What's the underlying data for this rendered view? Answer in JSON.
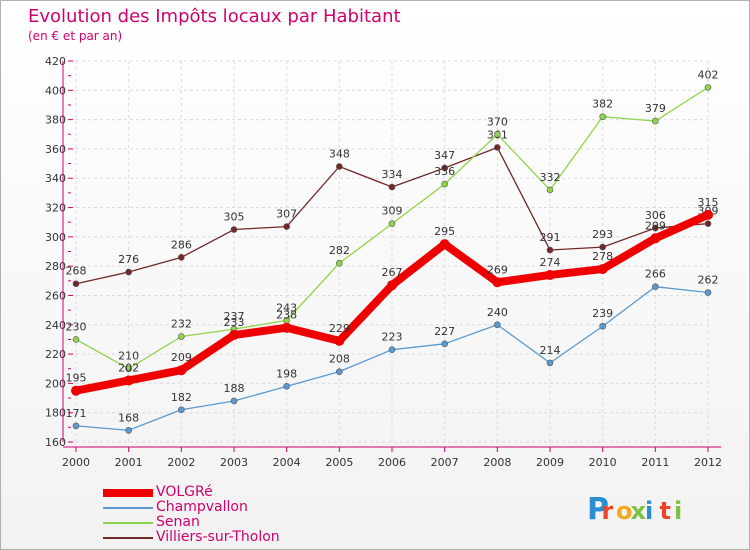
{
  "header": {
    "title": "Evolution des Impôts locaux par Habitant",
    "subtitle": "(en € et par an)"
  },
  "logo": {
    "text": "Proxiti",
    "colors": [
      "#2a8fd0",
      "#e8452b",
      "#f2a91c",
      "#7cc242",
      "#2a8fd0",
      "#e8452b",
      "#7cc242"
    ]
  },
  "chart_data": {
    "type": "line",
    "x": [
      "2000",
      "2001",
      "2002",
      "2003",
      "2004",
      "2005",
      "2006",
      "2007",
      "2008",
      "2009",
      "2010",
      "2011",
      "2012"
    ],
    "ylim": [
      160,
      420
    ],
    "yticks": [
      "160",
      "180",
      "200",
      "220",
      "240",
      "260",
      "280",
      "300",
      "320",
      "340",
      "360",
      "380",
      "400",
      "420"
    ],
    "grid": true,
    "legend_position": "bottom-left",
    "series": [
      {
        "name": "Villiers-sur-Tholon",
        "color": "#722828",
        "values": [
          268,
          276,
          286,
          305,
          307,
          348,
          334,
          347,
          361,
          291,
          293,
          306,
          309
        ]
      },
      {
        "name": "Senan",
        "color": "#8fd44a",
        "values": [
          230,
          210,
          232,
          237,
          243,
          282,
          309,
          336,
          370,
          332,
          382,
          379,
          402
        ]
      },
      {
        "name": "Champvallon",
        "color": "#5a9ad0",
        "values": [
          171,
          168,
          182,
          188,
          198,
          208,
          223,
          227,
          240,
          214,
          239,
          266,
          262
        ]
      },
      {
        "name": "VOLGRé",
        "color": "#ee0000",
        "values": [
          195,
          202,
          209,
          233,
          238,
          229,
          267,
          295,
          269,
          274,
          278,
          299,
          315
        ]
      }
    ]
  }
}
